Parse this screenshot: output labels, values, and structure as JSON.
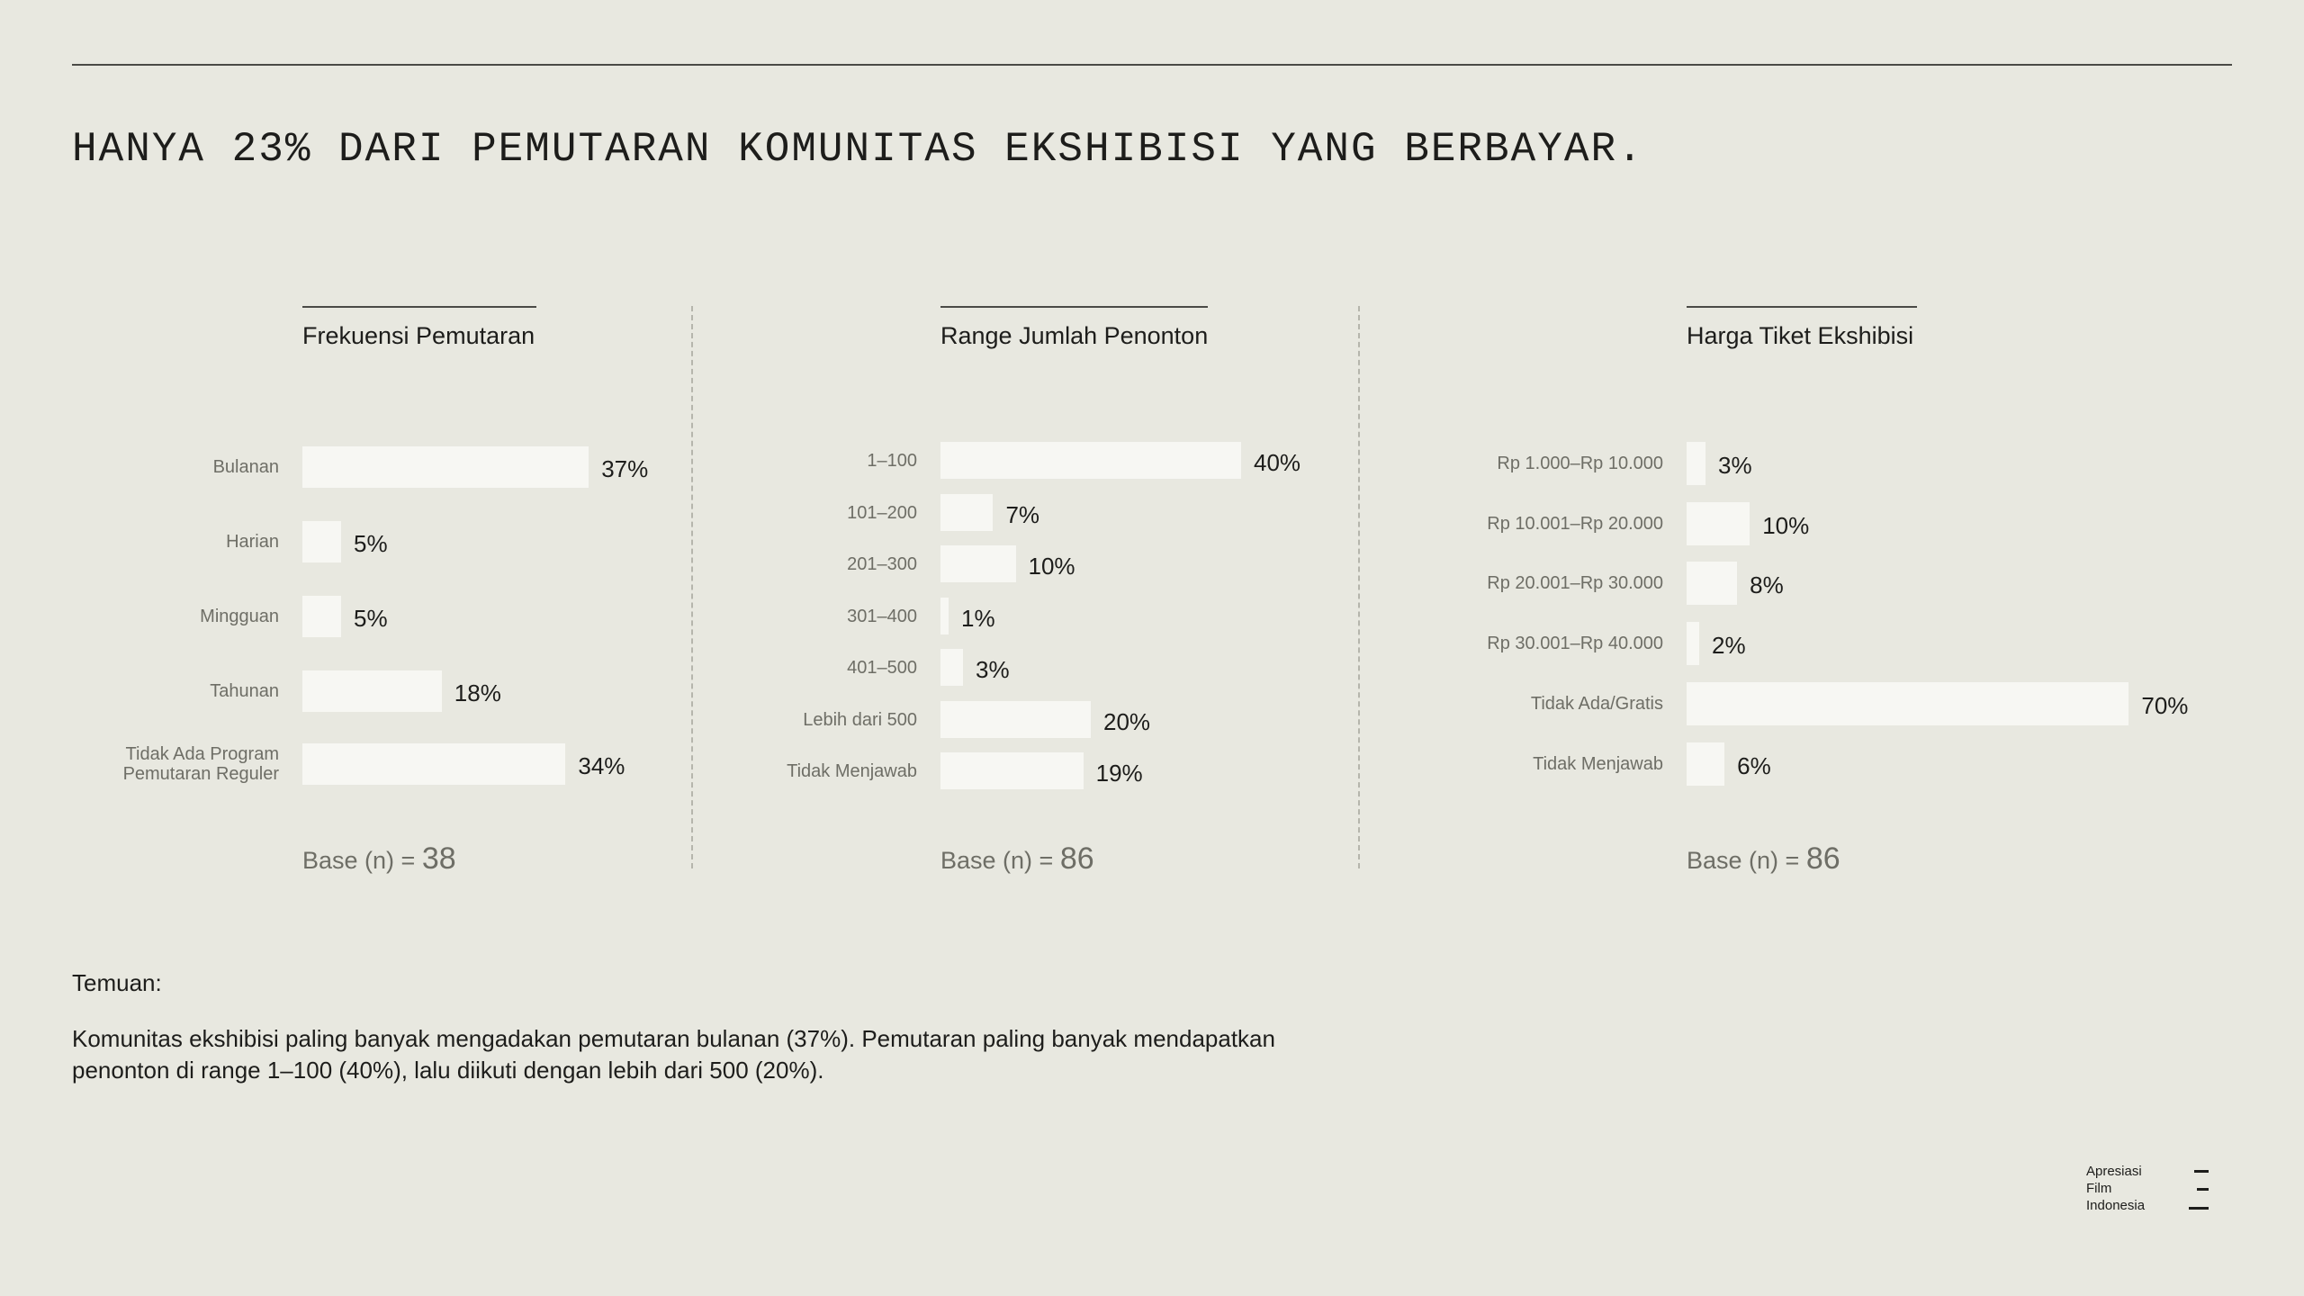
{
  "headline": "HANYA 23% DARI PEMUTARAN KOMUNITAS EKSHIBISI YANG BERBAYAR.",
  "chart_data": [
    {
      "type": "bar",
      "orientation": "horizontal",
      "title": "Frekuensi Pemutaran",
      "categories": [
        "Bulanan",
        "Harian",
        "Mingguan",
        "Tahunan",
        "Tidak Ada Program Pemutaran Reguler"
      ],
      "values": [
        37,
        5,
        5,
        18,
        34
      ],
      "value_labels": [
        "37%",
        "5%",
        "5%",
        "18%",
        "34%"
      ],
      "base_label": "Base (n) =",
      "base_n": "38"
    },
    {
      "type": "bar",
      "orientation": "horizontal",
      "title": "Range Jumlah Penonton",
      "categories": [
        "1–100",
        "101–200",
        "201–300",
        "301–400",
        "401–500",
        "Lebih dari 500",
        "Tidak Menjawab"
      ],
      "values": [
        40,
        7,
        10,
        1,
        3,
        20,
        19
      ],
      "value_labels": [
        "40%",
        "7%",
        "10%",
        "1%",
        "3%",
        "20%",
        "19%"
      ],
      "base_label": "Base (n) =",
      "base_n": "86"
    },
    {
      "type": "bar",
      "orientation": "horizontal",
      "title": "Harga Tiket Ekshibisi",
      "categories": [
        "Rp 1.000–Rp 10.000",
        "Rp 10.001–Rp 20.000",
        "Rp 20.001–Rp 30.000",
        "Rp 30.001–Rp 40.000",
        "Tidak Ada/Gratis",
        "Tidak Menjawab"
      ],
      "values": [
        3,
        10,
        8,
        2,
        70,
        6
      ],
      "value_labels": [
        "3%",
        "10%",
        "8%",
        "2%",
        "70%",
        "6%"
      ],
      "base_label": "Base (n) =",
      "base_n": "86"
    }
  ],
  "findings": {
    "heading": "Temuan:",
    "text": "Komunitas ekshibisi paling banyak mengadakan pemutaran bulanan (37%). Pemutaran paling banyak mendapatkan penonton di range 1–100 (40%), lalu diikuti dengan lebih dari 500 (20%)."
  },
  "logo": {
    "line1": "Apresiasi",
    "line2": "Film",
    "line3": "Indonesia"
  },
  "colors": {
    "background": "#e8e8e0",
    "bar": "#f7f7f3",
    "text": "#1d1d1b",
    "muted_text": "#6e6e66"
  }
}
